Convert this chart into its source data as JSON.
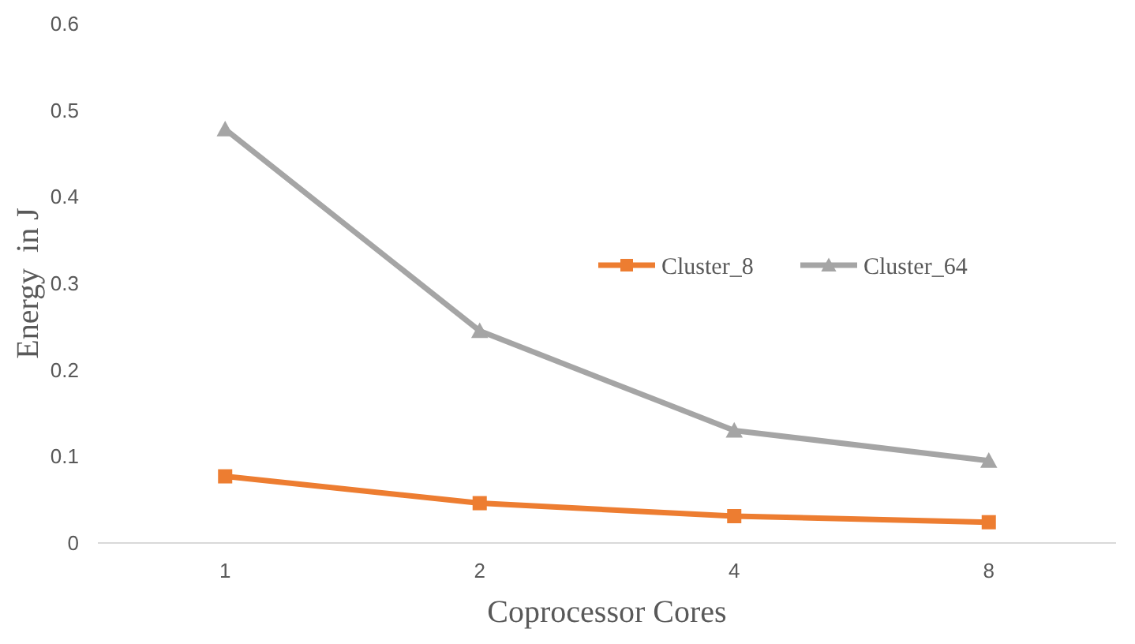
{
  "chart_data": {
    "type": "line",
    "xlabel": "Coprocessor Cores",
    "ylabel": "Energy  in J",
    "categories": [
      "1",
      "2",
      "4",
      "8"
    ],
    "series": [
      {
        "name": "Cluster_8",
        "color": "#ed7d31",
        "marker": "square",
        "values": [
          0.077,
          0.046,
          0.031,
          0.024
        ]
      },
      {
        "name": "Cluster_64",
        "color": "#a5a5a5",
        "marker": "triangle",
        "values": [
          0.478,
          0.245,
          0.13,
          0.095
        ]
      }
    ],
    "ylim": [
      0,
      0.6
    ],
    "yticks": [
      0,
      0.1,
      0.2,
      0.3,
      0.4,
      0.5,
      0.6
    ],
    "grid": false,
    "legend": "right",
    "line_style": "solid"
  }
}
